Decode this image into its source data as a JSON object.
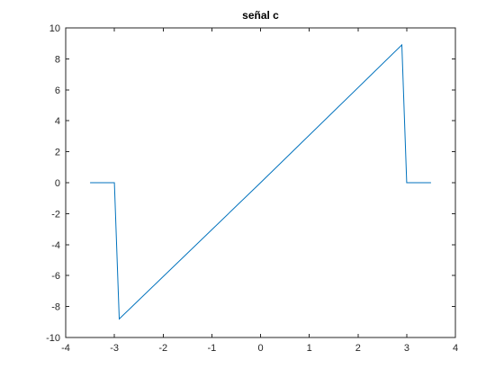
{
  "chart_data": {
    "type": "line",
    "title": "señal c",
    "xlabel": "",
    "ylabel": "",
    "xlim": [
      -4,
      4
    ],
    "ylim": [
      -10,
      10
    ],
    "xticks": [
      -4,
      -3,
      -2,
      -1,
      0,
      1,
      2,
      3,
      4
    ],
    "yticks": [
      -10,
      -8,
      -6,
      -4,
      -2,
      0,
      2,
      4,
      6,
      8,
      10
    ],
    "grid": false,
    "series": [
      {
        "color": "#0072BD",
        "x": [
          -3.5,
          -3.0,
          -2.9,
          0,
          2.9,
          3.0,
          3.5
        ],
        "y": [
          0,
          0,
          -8.8,
          0,
          8.9,
          0,
          0
        ]
      }
    ]
  },
  "colors": {
    "axis": "#262626",
    "line": "#0072BD",
    "background": "#ffffff"
  }
}
